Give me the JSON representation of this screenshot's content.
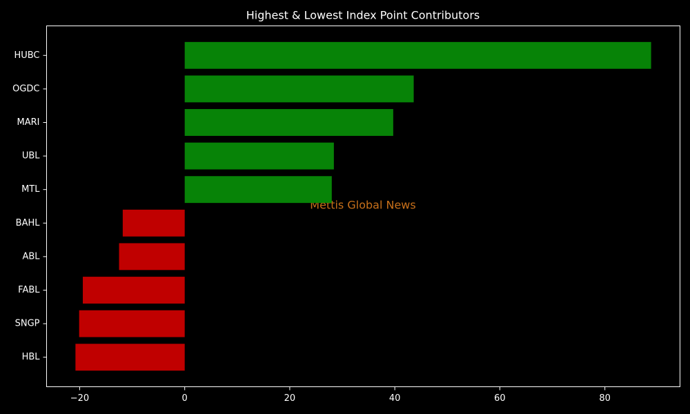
{
  "chart_data": {
    "type": "barh",
    "title": "Highest & Lowest Index Point Contributors",
    "watermark": "Mettis Global News",
    "categories": [
      "HUBC",
      "OGDC",
      "MARI",
      "UBL",
      "MTL",
      "BAHL",
      "ABL",
      "FABL",
      "SNGP",
      "HBL"
    ],
    "values": [
      88.8,
      43.6,
      39.7,
      28.4,
      28.0,
      -11.8,
      -12.5,
      -19.4,
      -20.1,
      -20.8
    ],
    "colors": [
      "#078307",
      "#078307",
      "#078307",
      "#078307",
      "#078307",
      "#c00000",
      "#c00000",
      "#c00000",
      "#c00000",
      "#c00000"
    ],
    "xlim": [
      -26.3,
      94.3
    ],
    "xticks": [
      {
        "value": -20,
        "label": "−20"
      },
      0,
      20,
      40,
      60,
      80
    ],
    "grid": false
  }
}
